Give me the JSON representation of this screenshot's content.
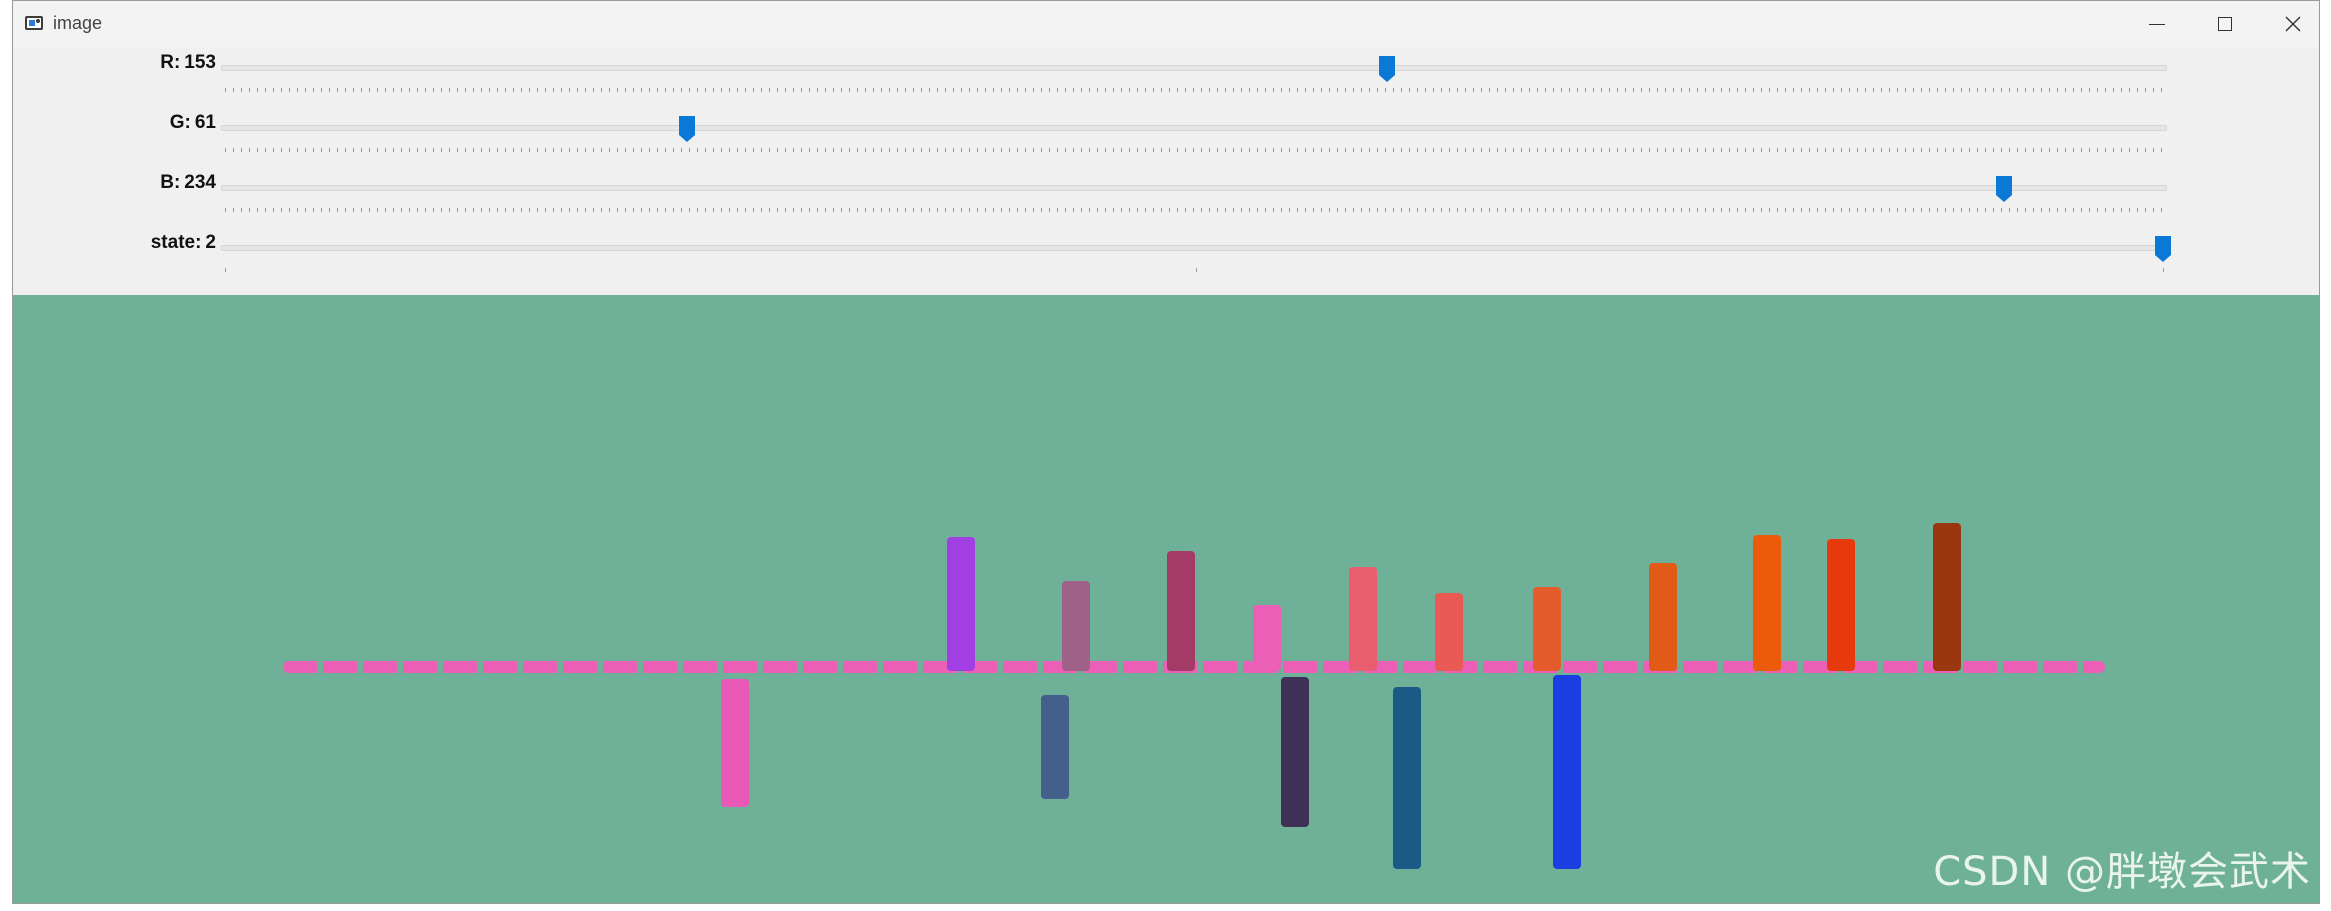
{
  "window": {
    "title": "image",
    "icon": "app-window-icon",
    "controls": [
      "minimize-icon",
      "maximize-icon",
      "close-icon"
    ]
  },
  "trackbars": [
    {
      "label": "R:",
      "value": "153",
      "fraction": 0.6
    },
    {
      "label": "G:",
      "value": "61",
      "fraction": 0.239
    },
    {
      "label": "B:",
      "value": "234",
      "fraction": 0.918
    },
    {
      "label": "state:",
      "value": "2",
      "fraction": 1.0
    }
  ],
  "canvas": {
    "background": "#6fb198",
    "strokes": [
      {
        "color": "#ec5fb6"
      },
      {
        "color": "#a23fe2"
      },
      {
        "color": "#a06188"
      },
      {
        "color": "#a43a66"
      },
      {
        "color": "#ec5fb6"
      },
      {
        "color": "#ea5d6e"
      },
      {
        "color": "#ea5a55"
      },
      {
        "color": "#e55c2c"
      },
      {
        "color": "#e25a17"
      },
      {
        "color": "#ec5b0a"
      },
      {
        "color": "#e63a0c"
      },
      {
        "color": "#9a3710"
      },
      {
        "color": "#e859b7"
      },
      {
        "color": "#445f8a"
      },
      {
        "color": "#3f3156"
      },
      {
        "color": "#1b5a86"
      },
      {
        "color": "#1b3ee3"
      }
    ]
  },
  "watermark": "CSDN @胖墩会武术"
}
